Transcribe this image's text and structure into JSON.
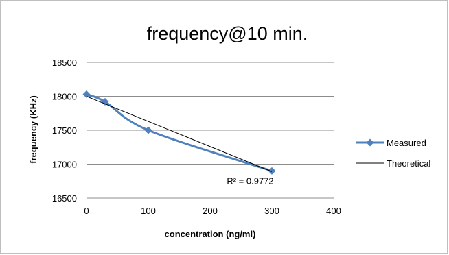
{
  "chart_data": {
    "type": "scatter",
    "title": "frequency@10 min.",
    "xlabel": "concentration (ng/ml)",
    "ylabel": "frequency (KHz)",
    "xlim": [
      0,
      400
    ],
    "ylim": [
      16500,
      18500
    ],
    "x_ticks": [
      "0",
      "100",
      "200",
      "300",
      "400"
    ],
    "y_ticks": [
      "16500",
      "17000",
      "17500",
      "18000",
      "18500"
    ],
    "grid": true,
    "legend_position": "right",
    "series": [
      {
        "name": "Measured",
        "color": "#4f81bd",
        "marker": "diamond",
        "line": "smooth",
        "x": [
          0,
          30,
          100,
          300
        ],
        "y": [
          18030,
          17920,
          17500,
          16900
        ]
      },
      {
        "name": "Theoretical",
        "color": "#000000",
        "line": "straight",
        "x": [
          0,
          300
        ],
        "y": [
          18000,
          16890
        ]
      }
    ],
    "annotations": [
      {
        "text": "R² = 0.9772",
        "x": 265,
        "y": 16990
      }
    ]
  }
}
